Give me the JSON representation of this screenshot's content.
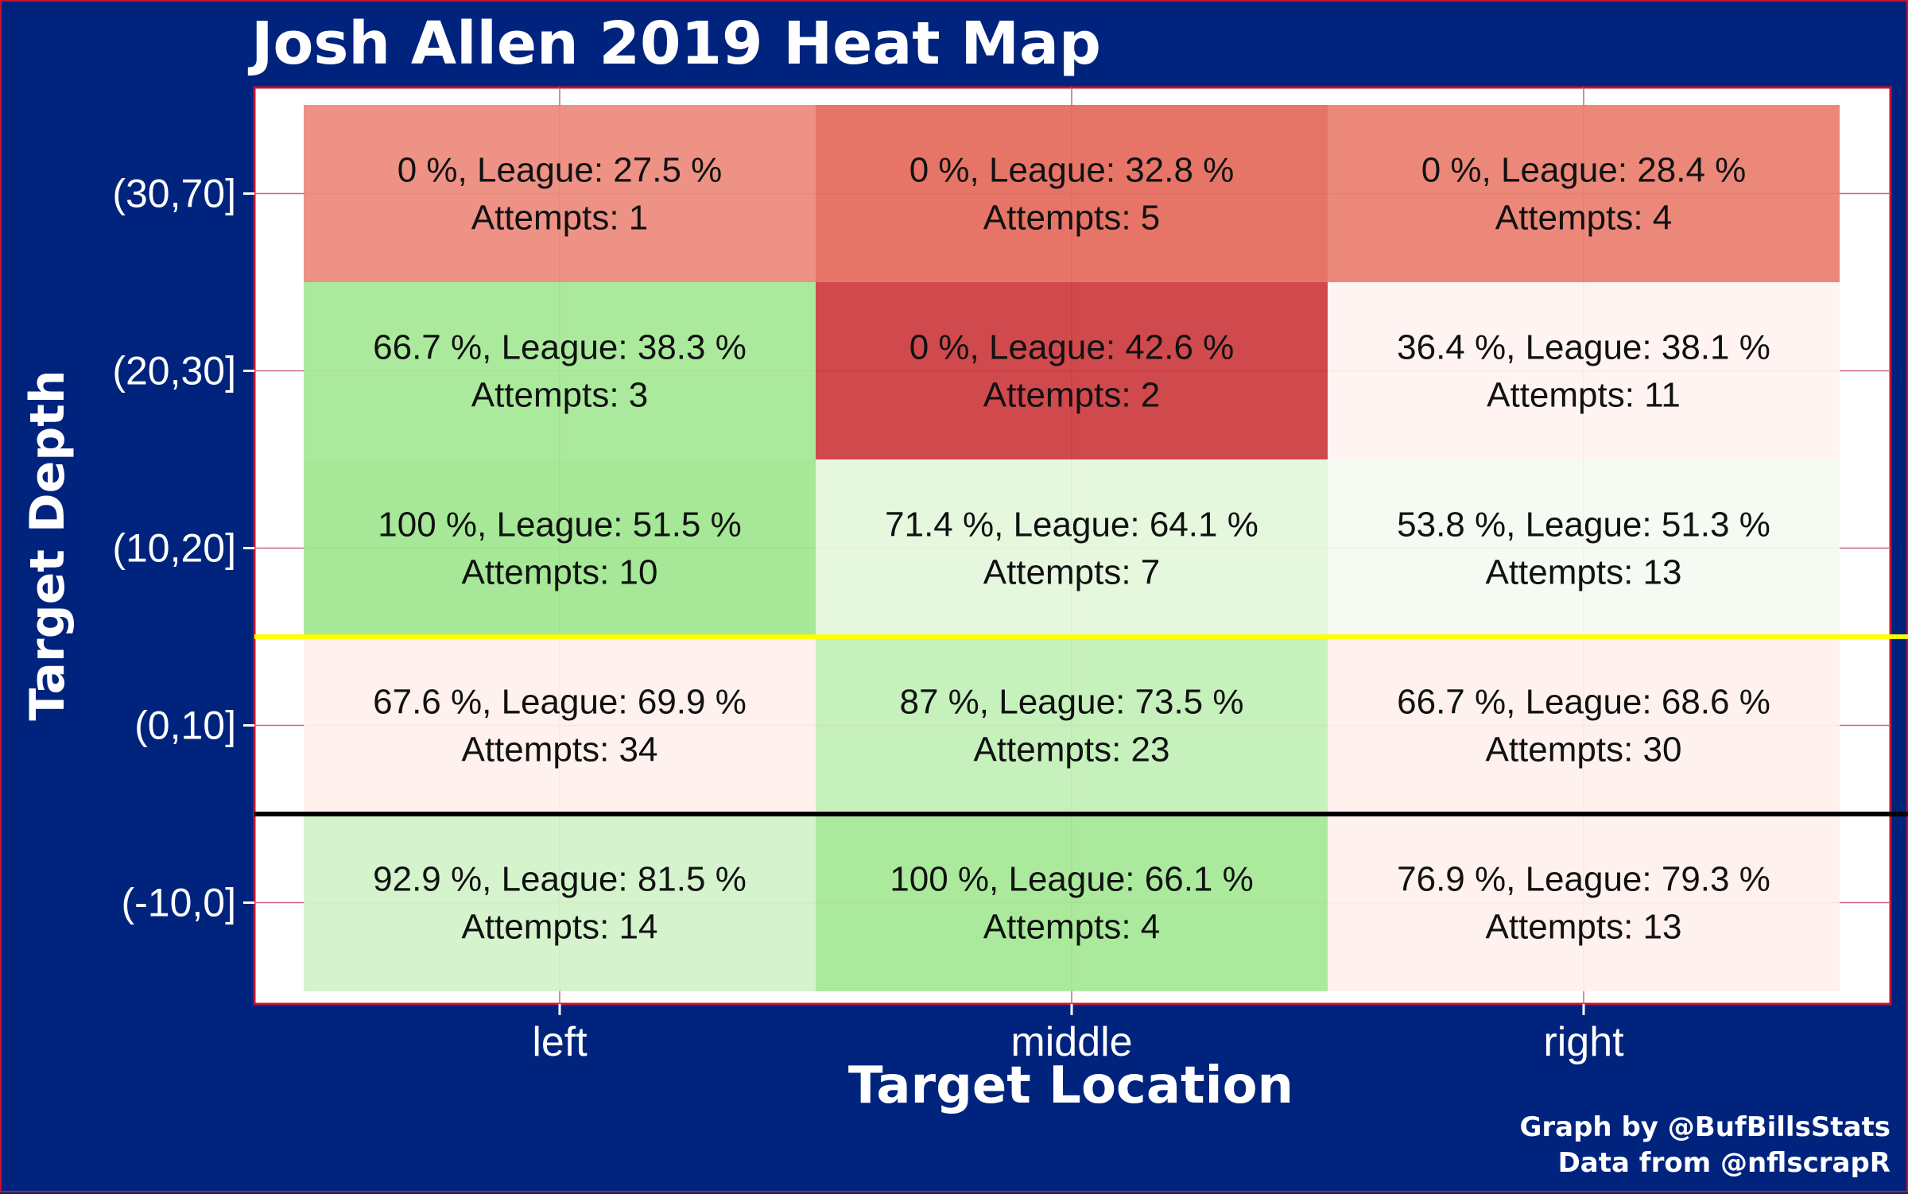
{
  "chart_data": {
    "type": "heatmap",
    "title": "Josh Allen 2019 Heat Map",
    "xlabel": "Target Location",
    "ylabel": "Target Depth",
    "x_categories": [
      "left",
      "middle",
      "right"
    ],
    "y_categories": [
      "(30,70]",
      "(20,30]",
      "(10,20]",
      "(0,10]",
      "(-10,0]"
    ],
    "cells": [
      {
        "x": "left",
        "y": "(30,70]",
        "pct": "0 %",
        "league": "27.5 %",
        "attempts": 1,
        "color": "#ec8a7c",
        "line1": "0 %, League: 27.5 %",
        "line2": "Attempts: 1"
      },
      {
        "x": "middle",
        "y": "(30,70]",
        "pct": "0 %",
        "league": "32.8 %",
        "attempts": 5,
        "color": "#e46b5d",
        "line1": "0 %, League: 32.8 %",
        "line2": "Attempts: 5"
      },
      {
        "x": "right",
        "y": "(30,70]",
        "pct": "0 %",
        "league": "28.4 %",
        "attempts": 4,
        "color": "#ea7f70",
        "line1": "0 %, League: 28.4 %",
        "line2": "Attempts: 4"
      },
      {
        "x": "left",
        "y": "(20,30]",
        "pct": "66.7 %",
        "league": "38.3 %",
        "attempts": 3,
        "color": "#a5e896",
        "line1": "66.7 %, League: 38.3 %",
        "line2": "Attempts: 3"
      },
      {
        "x": "middle",
        "y": "(20,30]",
        "pct": "0 %",
        "league": "42.6 %",
        "attempts": 2,
        "color": "#cc3b3f",
        "line1": "0 %, League: 42.6 %",
        "line2": "Attempts: 2"
      },
      {
        "x": "right",
        "y": "(20,30]",
        "pct": "36.4 %",
        "league": "38.1 %",
        "attempts": 11,
        "color": "#fff3f0",
        "line1": "36.4 %, League: 38.1 %",
        "line2": "Attempts: 11"
      },
      {
        "x": "left",
        "y": "(10,20]",
        "pct": "100 %",
        "league": "51.5 %",
        "attempts": 10,
        "color": "#9fe68f",
        "line1": "100 %, League: 51.5 %",
        "line2": "Attempts: 10"
      },
      {
        "x": "middle",
        "y": "(10,20]",
        "pct": "71.4 %",
        "league": "64.1 %",
        "attempts": 7,
        "color": "#e3f7dc",
        "line1": "71.4 %, League: 64.1 %",
        "line2": "Attempts: 7"
      },
      {
        "x": "right",
        "y": "(10,20]",
        "pct": "53.8 %",
        "league": "51.3 %",
        "attempts": 13,
        "color": "#f4fbf1",
        "line1": "53.8 %, League: 51.3 %",
        "line2": "Attempts: 13"
      },
      {
        "x": "left",
        "y": "(0,10]",
        "pct": "67.6 %",
        "league": "69.9 %",
        "attempts": 34,
        "color": "#fff0ec",
        "line1": "67.6 %, League: 69.9 %",
        "line2": "Attempts: 34"
      },
      {
        "x": "middle",
        "y": "(0,10]",
        "pct": "87 %",
        "league": "73.5 %",
        "attempts": 23,
        "color": "#c3f0b7",
        "line1": "87 %, League: 73.5 %",
        "line2": "Attempts: 23"
      },
      {
        "x": "right",
        "y": "(0,10]",
        "pct": "66.7 %",
        "league": "68.6 %",
        "attempts": 30,
        "color": "#fff1ed",
        "line1": "66.7 %, League: 68.6 %",
        "line2": "Attempts: 30"
      },
      {
        "x": "left",
        "y": "(-10,0]",
        "pct": "92.9 %",
        "league": "81.5 %",
        "attempts": 14,
        "color": "#d2f3c9",
        "line1": "92.9 %, League: 81.5 %",
        "line2": "Attempts: 14"
      },
      {
        "x": "middle",
        "y": "(-10,0]",
        "pct": "100 %",
        "league": "66.1 %",
        "attempts": 4,
        "color": "#a5e896",
        "line1": "100 %, League: 66.1 %",
        "line2": "Attempts: 4"
      },
      {
        "x": "right",
        "y": "(-10,0]",
        "pct": "76.9 %",
        "league": "79.3 %",
        "attempts": 13,
        "color": "#fff0ec",
        "line1": "76.9 %, League: 79.3 %",
        "line2": "Attempts: 13"
      }
    ],
    "reference_lines": [
      {
        "between": [
          "(10,20]",
          "(0,10]"
        ],
        "color": "#ffff00"
      },
      {
        "between": [
          "(0,10]",
          "(-10,0]"
        ],
        "color": "#000000"
      }
    ],
    "grid": true,
    "colors": {
      "background": "#00247d",
      "panel": "#ffffff",
      "border": "#c8102e",
      "gridline": "#c9677a"
    }
  },
  "credits": {
    "line1": "Graph by @BufBillsStats",
    "line2": "Data from @nflscrapR"
  }
}
